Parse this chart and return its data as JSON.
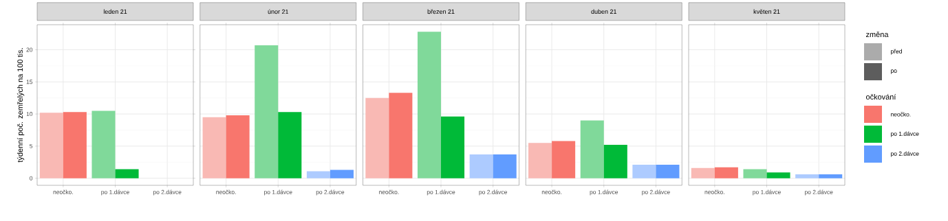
{
  "chart_data": [
    {
      "type": "bar",
      "title": "leden 21",
      "ylabel": "týdenní poč. zemřelých na 100 tis.",
      "categories": [
        "neočko.",
        "po 1.dávce",
        "po 2.dávce"
      ],
      "series": [
        {
          "colors": [
            "#f9b9b4",
            "#80d99a",
            "#adcbff"
          ],
          "values": [
            10.2,
            10.5,
            null
          ]
        },
        {
          "colors": [
            "#f8766d",
            "#00ba38",
            "#619cff"
          ],
          "values": [
            10.3,
            1.4,
            null
          ]
        }
      ],
      "ylim": [
        -1.1,
        23.9
      ],
      "yticks": [
        0,
        5,
        10,
        15,
        20
      ],
      "grid": true
    },
    {
      "type": "bar",
      "title": "únor 21",
      "categories": [
        "neočko.",
        "po 1.dávce",
        "po 2.dávce"
      ],
      "series": [
        {
          "colors": [
            "#f9b9b4",
            "#80d99a",
            "#adcbff"
          ],
          "values": [
            9.5,
            20.7,
            1.1
          ]
        },
        {
          "colors": [
            "#f8766d",
            "#00ba38",
            "#619cff"
          ],
          "values": [
            9.8,
            10.3,
            1.3
          ]
        }
      ],
      "ylim": [
        -1.1,
        23.9
      ],
      "yticks": [
        0,
        5,
        10,
        15,
        20
      ],
      "grid": true,
      "tick_labels": "x"
    },
    {
      "type": "bar",
      "title": "březen 21",
      "categories": [
        "neočko.",
        "po 1.dávce",
        "po 2.dávce"
      ],
      "series": [
        {
          "colors": [
            "#f9b9b4",
            "#80d99a",
            "#adcbff"
          ],
          "values": [
            12.5,
            22.8,
            3.7
          ]
        },
        {
          "colors": [
            "#f8766d",
            "#00ba38",
            "#619cff"
          ],
          "values": [
            13.3,
            9.6,
            3.7
          ]
        }
      ],
      "ylim": [
        -1.1,
        23.9
      ],
      "yticks": [
        0,
        5,
        10,
        15,
        20
      ],
      "grid": true,
      "tick_labels": "x"
    },
    {
      "type": "bar",
      "title": "duben 21",
      "categories": [
        "neočko.",
        "po 1.dávce",
        "po 2.dávce"
      ],
      "series": [
        {
          "colors": [
            "#f9b9b4",
            "#80d99a",
            "#adcbff"
          ],
          "values": [
            5.5,
            9.0,
            2.1
          ]
        },
        {
          "colors": [
            "#f8766d",
            "#00ba38",
            "#619cff"
          ],
          "values": [
            5.8,
            5.2,
            2.1
          ]
        }
      ],
      "ylim": [
        -1.1,
        23.9
      ],
      "yticks": [
        0,
        5,
        10,
        15,
        20
      ],
      "grid": true,
      "tick_labels": "x"
    },
    {
      "type": "bar",
      "title": "květen 21",
      "categories": [
        "neočko.",
        "po 1.dávce",
        "po 2.dávce"
      ],
      "series": [
        {
          "name": "před",
          "color": "#ababab",
          "colors": [
            "#f9b9b4",
            "#80d99a",
            "#adcbff"
          ],
          "values": [
            1.6,
            1.4,
            0.6
          ]
        },
        {
          "name": "po",
          "color": "#5d5d5d",
          "colors": [
            "#f8766d",
            "#00ba38",
            "#619cff"
          ],
          "values": [
            1.7,
            0.9,
            0.6
          ]
        }
      ],
      "ylim": [
        -1.1,
        23.9
      ],
      "yticks": [
        0,
        5,
        10,
        15,
        20
      ],
      "grid": true,
      "tick_labels": "x",
      "legend": "right",
      "legend_title": "změna"
    },
    {
      "type": "other",
      "title": "očkování",
      "categories": [
        "neočko.",
        "po 1.dávce",
        "po 2.dávce"
      ],
      "colors": [
        "#f8766d",
        "#00ba38",
        "#619cff"
      ]
    }
  ]
}
